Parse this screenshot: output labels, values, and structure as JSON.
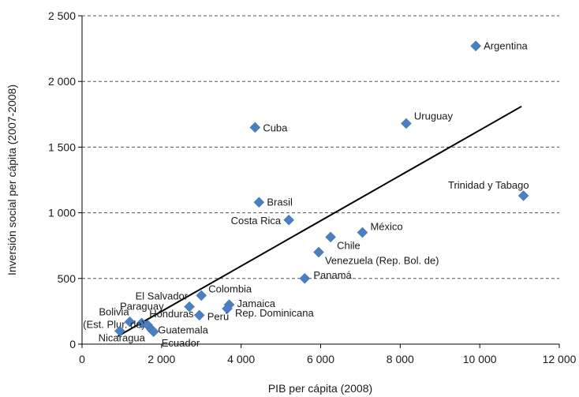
{
  "chart_data": {
    "type": "scatter",
    "title": "",
    "xlabel": "PIB per cápita (2008)",
    "ylabel": "Inversión  social per cápita (2007-2008)",
    "xlim": [
      0,
      12000
    ],
    "ylim": [
      0,
      2500
    ],
    "x_ticks": [
      0,
      2000,
      4000,
      6000,
      8000,
      10000,
      12000
    ],
    "x_tick_labels": [
      "0",
      "2 000",
      "4 000",
      "6 000",
      "8 000",
      "10 000",
      "12 000"
    ],
    "y_ticks": [
      0,
      500,
      1000,
      1500,
      2000,
      2500
    ],
    "y_tick_labels": [
      "0",
      "500",
      "1 000",
      "1 500",
      "2 000",
      "2 500"
    ],
    "grid": "horizontal-dashed",
    "marker": "diamond",
    "marker_color": "#4a7fc1",
    "trendline_color": "#000000",
    "trendline": [
      [
        900,
        60
      ],
      [
        11050,
        1810
      ]
    ],
    "points": [
      {
        "x": 9900,
        "y": 2270,
        "label": "Argentina"
      },
      {
        "x": 8150,
        "y": 1680,
        "label": "Uruguay"
      },
      {
        "x": 4350,
        "y": 1650,
        "label": "Cuba"
      },
      {
        "x": 11100,
        "y": 1130,
        "label": "Trinidad y Tabago"
      },
      {
        "x": 4450,
        "y": 1080,
        "label": "Brasil"
      },
      {
        "x": 5200,
        "y": 945,
        "label": "Costa Rica"
      },
      {
        "x": 7050,
        "y": 850,
        "label": "México"
      },
      {
        "x": 6250,
        "y": 815,
        "label": "Chile"
      },
      {
        "x": 5950,
        "y": 700,
        "label": "Venezuela (Rep. Bol. de)"
      },
      {
        "x": 5600,
        "y": 500,
        "label": "Panamá"
      },
      {
        "x": 3000,
        "y": 370,
        "label": "Colombia"
      },
      {
        "x": 2700,
        "y": 285,
        "label": "El Salvador"
      },
      {
        "x": 3700,
        "y": 300,
        "label": "Jamaica"
      },
      {
        "x": 3650,
        "y": 270,
        "label": "Rep. Dominicana"
      },
      {
        "x": 2950,
        "y": 220,
        "label": "Perú"
      },
      {
        "x": 1500,
        "y": 160,
        "label": "Paraguay"
      },
      {
        "x": 1200,
        "y": 170,
        "label": "Bolivia\n(Est. Plur. de)"
      },
      {
        "x": 1650,
        "y": 145,
        "label": "Honduras"
      },
      {
        "x": 1750,
        "y": 110,
        "label": "Guatemala"
      },
      {
        "x": 1800,
        "y": 95,
        "label": "Ecuador"
      },
      {
        "x": 950,
        "y": 100,
        "label": "Nicaragua"
      }
    ]
  }
}
